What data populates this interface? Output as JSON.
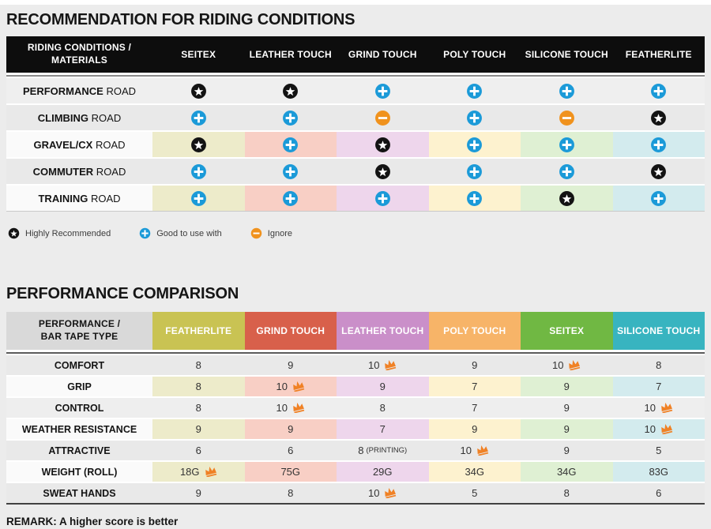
{
  "page": {
    "background": "#ececec",
    "tinted_label_bg": "#fafafa",
    "column_tints": [
      "#edebca",
      "#f8cfc5",
      "#eed6ec",
      "#fdf2cf",
      "#dff0d3",
      "#d3ebee"
    ],
    "icon_colors": {
      "star": "#131313",
      "plus": "#1b9ad8",
      "minus": "#f0921d",
      "crown": "#f08125"
    }
  },
  "chart_data": [
    {
      "type": "table",
      "title": "RECOMMENDATION FOR RIDING CONDITIONS",
      "row_header_line1": "RIDING CONDITIONS /",
      "row_header_line2": "MATERIALS",
      "columns": [
        "SEITEX",
        "LEATHER TOUCH",
        "GRIND TOUCH",
        "POLY TOUCH",
        "SILICONE TOUCH",
        "FEATHERLITE"
      ],
      "rows": [
        {
          "name": "PERFORMANCE",
          "rest": "ROAD",
          "icons": [
            "star",
            "star",
            "plus",
            "plus",
            "plus",
            "plus"
          ],
          "tinted": false,
          "bg": "#efefef"
        },
        {
          "name": "CLIMBING",
          "rest": "ROAD",
          "icons": [
            "plus",
            "plus",
            "minus",
            "plus",
            "minus",
            "star"
          ],
          "tinted": false,
          "bg": "#e9e9e9"
        },
        {
          "name": "GRAVEL/CX",
          "rest": "ROAD",
          "icons": [
            "star",
            "plus",
            "star",
            "plus",
            "plus",
            "plus"
          ],
          "tinted": true
        },
        {
          "name": "COMMUTER",
          "rest": "ROAD",
          "icons": [
            "plus",
            "plus",
            "star",
            "plus",
            "plus",
            "star"
          ],
          "tinted": false,
          "bg": "#e9e9e9"
        },
        {
          "name": "TRAINING",
          "rest": "ROAD",
          "icons": [
            "plus",
            "plus",
            "plus",
            "plus",
            "star",
            "plus"
          ],
          "tinted": true
        }
      ]
    },
    {
      "type": "table",
      "title": "PERFORMANCE COMPARISON",
      "row_header_line1": "PERFORMANCE /",
      "row_header_line2": "BAR TAPE TYPE",
      "columns": [
        {
          "label": "FEATHERLITE",
          "color": "#c9c353"
        },
        {
          "label": "GRIND TOUCH",
          "color": "#d8604b"
        },
        {
          "label": "LEATHER TOUCH",
          "color": "#ca8fc9"
        },
        {
          "label": "POLY TOUCH",
          "color": "#f7b468"
        },
        {
          "label": "SEITEX",
          "color": "#70b843"
        },
        {
          "label": "SILICONE TOUCH",
          "color": "#38b4c0"
        }
      ],
      "rows": [
        {
          "label": "COMFORT",
          "tinted": false,
          "bg": "#e9e9e9",
          "cells": [
            {
              "v": "8"
            },
            {
              "v": "9"
            },
            {
              "v": "10",
              "crown": true
            },
            {
              "v": "9"
            },
            {
              "v": "10",
              "crown": true
            },
            {
              "v": "8"
            }
          ]
        },
        {
          "label": "GRIP",
          "tinted": true,
          "cells": [
            {
              "v": "8"
            },
            {
              "v": "10",
              "crown": true
            },
            {
              "v": "9"
            },
            {
              "v": "7"
            },
            {
              "v": "9"
            },
            {
              "v": "7"
            }
          ]
        },
        {
          "label": "CONTROL",
          "tinted": false,
          "bg": "#eeeeee",
          "cells": [
            {
              "v": "8"
            },
            {
              "v": "10",
              "crown": true
            },
            {
              "v": "8"
            },
            {
              "v": "7"
            },
            {
              "v": "9"
            },
            {
              "v": "10",
              "crown": true
            }
          ]
        },
        {
          "label": "WEATHER RESISTANCE",
          "tinted": true,
          "cells": [
            {
              "v": "9"
            },
            {
              "v": "9"
            },
            {
              "v": "7"
            },
            {
              "v": "9"
            },
            {
              "v": "9"
            },
            {
              "v": "10",
              "crown": true
            }
          ]
        },
        {
          "label": "ATTRACTIVE",
          "tinted": false,
          "bg": "#e9e9e9",
          "cells": [
            {
              "v": "6"
            },
            {
              "v": "6"
            },
            {
              "v": "8",
              "note": "(PRINTING)"
            },
            {
              "v": "10",
              "crown": true
            },
            {
              "v": "9"
            },
            {
              "v": "5"
            }
          ]
        },
        {
          "label": "WEIGHT (ROLL)",
          "tinted": true,
          "cells": [
            {
              "v": "18G",
              "crown": true
            },
            {
              "v": "75G"
            },
            {
              "v": "29G"
            },
            {
              "v": "34G"
            },
            {
              "v": "34G"
            },
            {
              "v": "83G"
            }
          ]
        },
        {
          "label": "SWEAT HANDS",
          "tinted": false,
          "bg": "#e9e9e9",
          "cells": [
            {
              "v": "9"
            },
            {
              "v": "8"
            },
            {
              "v": "10",
              "crown": true
            },
            {
              "v": "5"
            },
            {
              "v": "8"
            },
            {
              "v": "6"
            }
          ]
        }
      ]
    }
  ],
  "legend": {
    "items": [
      {
        "icon": "star",
        "label": "Highly Recommended"
      },
      {
        "icon": "plus",
        "label": "Good to use with"
      },
      {
        "icon": "minus",
        "label": "Ignore"
      }
    ]
  },
  "remark": "REMARK: A higher score is better"
}
